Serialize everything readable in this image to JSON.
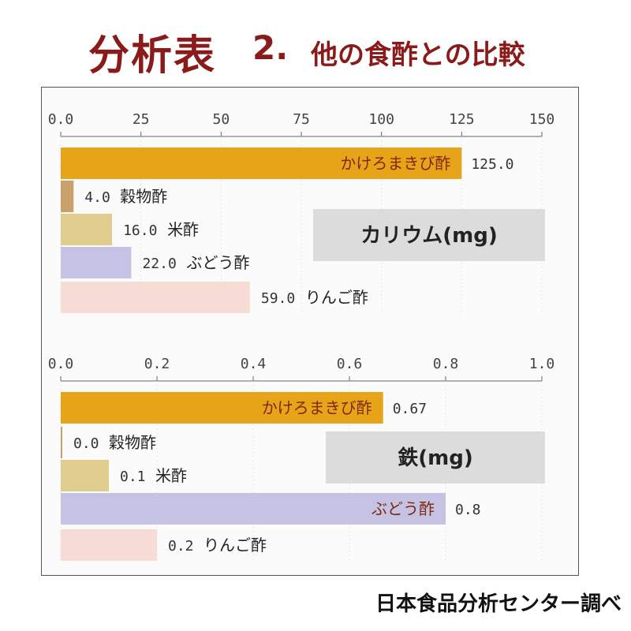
{
  "title": {
    "main": "分析表",
    "number": "2.",
    "subtitle": "他の食酢との比較"
  },
  "footer": "日本食品分析センター調べ",
  "colors": {
    "title": "#8b1a1a",
    "kakeromaki": "#e8a418",
    "kokumotsu": "#c9a06a",
    "kome": "#e0cc8c",
    "budou": "#c5c2e4",
    "ringo": "#f7dcd6",
    "unit_box": "#dcdcdc"
  },
  "chart_data": [
    {
      "type": "bar",
      "orientation": "horizontal",
      "unit_label": "カリウム(mg)",
      "xlim": [
        0,
        150
      ],
      "ticks": [
        "0.0",
        "25",
        "50",
        "75",
        "100",
        "125",
        "150"
      ],
      "tick_values": [
        0,
        25,
        50,
        75,
        100,
        125,
        150
      ],
      "categories": [
        "かけろまきび酢",
        "穀物酢",
        "米酢",
        "ぶどう酢",
        "りんご酢"
      ],
      "values": [
        125.0,
        4.0,
        16.0,
        22.0,
        59.0
      ],
      "value_labels": [
        "125.0",
        "4.0",
        "16.0",
        "22.0",
        "59.0"
      ],
      "label_inside": [
        true,
        false,
        false,
        false,
        false
      ]
    },
    {
      "type": "bar",
      "orientation": "horizontal",
      "unit_label": "鉄(mg)",
      "xlim": [
        0,
        1.0
      ],
      "ticks": [
        "0.0",
        "0.2",
        "0.4",
        "0.6",
        "0.8",
        "1.0"
      ],
      "tick_values": [
        0,
        0.2,
        0.4,
        0.6,
        0.8,
        1.0
      ],
      "categories": [
        "かけろまきび酢",
        "穀物酢",
        "米酢",
        "ぶどう酢",
        "りんご酢"
      ],
      "values": [
        0.67,
        0.0,
        0.1,
        0.8,
        0.2
      ],
      "value_labels": [
        "0.67",
        "0.0",
        "0.1",
        "0.8",
        "0.2"
      ],
      "label_inside": [
        true,
        false,
        false,
        true,
        false
      ]
    }
  ]
}
